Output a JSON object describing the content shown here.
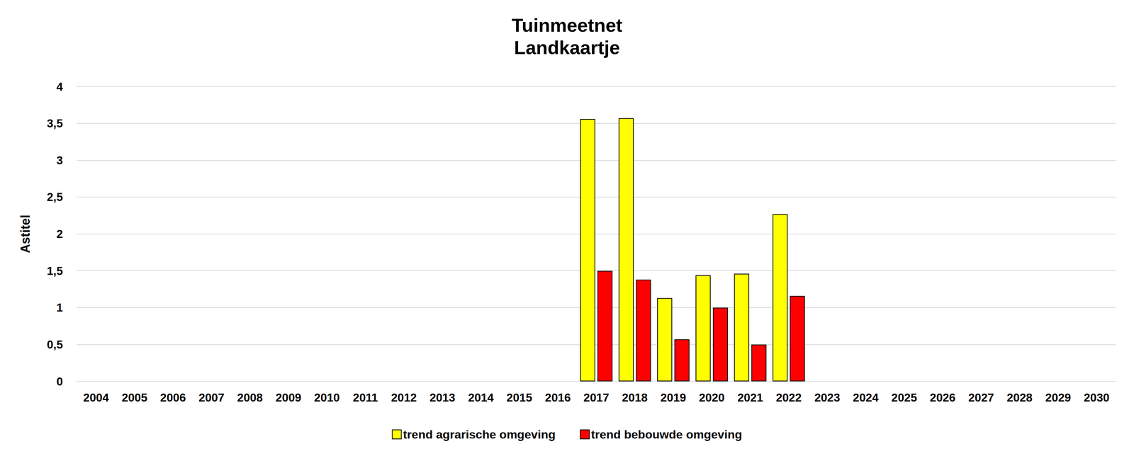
{
  "chart_data": {
    "type": "bar",
    "title": "Tuinmeetnet",
    "subtitle": "Landkaartje",
    "y_label": "Astitel",
    "categories": [
      "2004",
      "2005",
      "2006",
      "2007",
      "2008",
      "2009",
      "2010",
      "2011",
      "2012",
      "2013",
      "2014",
      "2015",
      "2016",
      "2017",
      "2018",
      "2019",
      "2020",
      "2021",
      "2022",
      "2023",
      "2024",
      "2025",
      "2026",
      "2027",
      "2028",
      "2029",
      "2030"
    ],
    "series": [
      {
        "name": "trend agrarische omgeving",
        "color": "#ffff00",
        "values": [
          null,
          null,
          null,
          null,
          null,
          null,
          null,
          null,
          null,
          null,
          null,
          null,
          null,
          3.56,
          3.57,
          1.13,
          1.44,
          1.46,
          2.27,
          null,
          null,
          null,
          null,
          null,
          null,
          null,
          null
        ]
      },
      {
        "name": "trend bebouwde omgeving",
        "color": "#ff0000",
        "values": [
          null,
          null,
          null,
          null,
          null,
          null,
          null,
          null,
          null,
          null,
          null,
          null,
          null,
          1.5,
          1.38,
          0.57,
          1.0,
          0.5,
          1.16,
          null,
          null,
          null,
          null,
          null,
          null,
          null,
          null
        ]
      }
    ],
    "ylim": [
      0,
      4
    ],
    "yticks": [
      0,
      {
        "value": 0.5,
        "label": "0,5"
      },
      1,
      {
        "value": 1.5,
        "label": "1,5"
      },
      2,
      {
        "value": 2.5,
        "label": "2,5"
      },
      3,
      {
        "value": 3.5,
        "label": "3,5"
      },
      4
    ],
    "grid": true,
    "legend": "bottom"
  }
}
